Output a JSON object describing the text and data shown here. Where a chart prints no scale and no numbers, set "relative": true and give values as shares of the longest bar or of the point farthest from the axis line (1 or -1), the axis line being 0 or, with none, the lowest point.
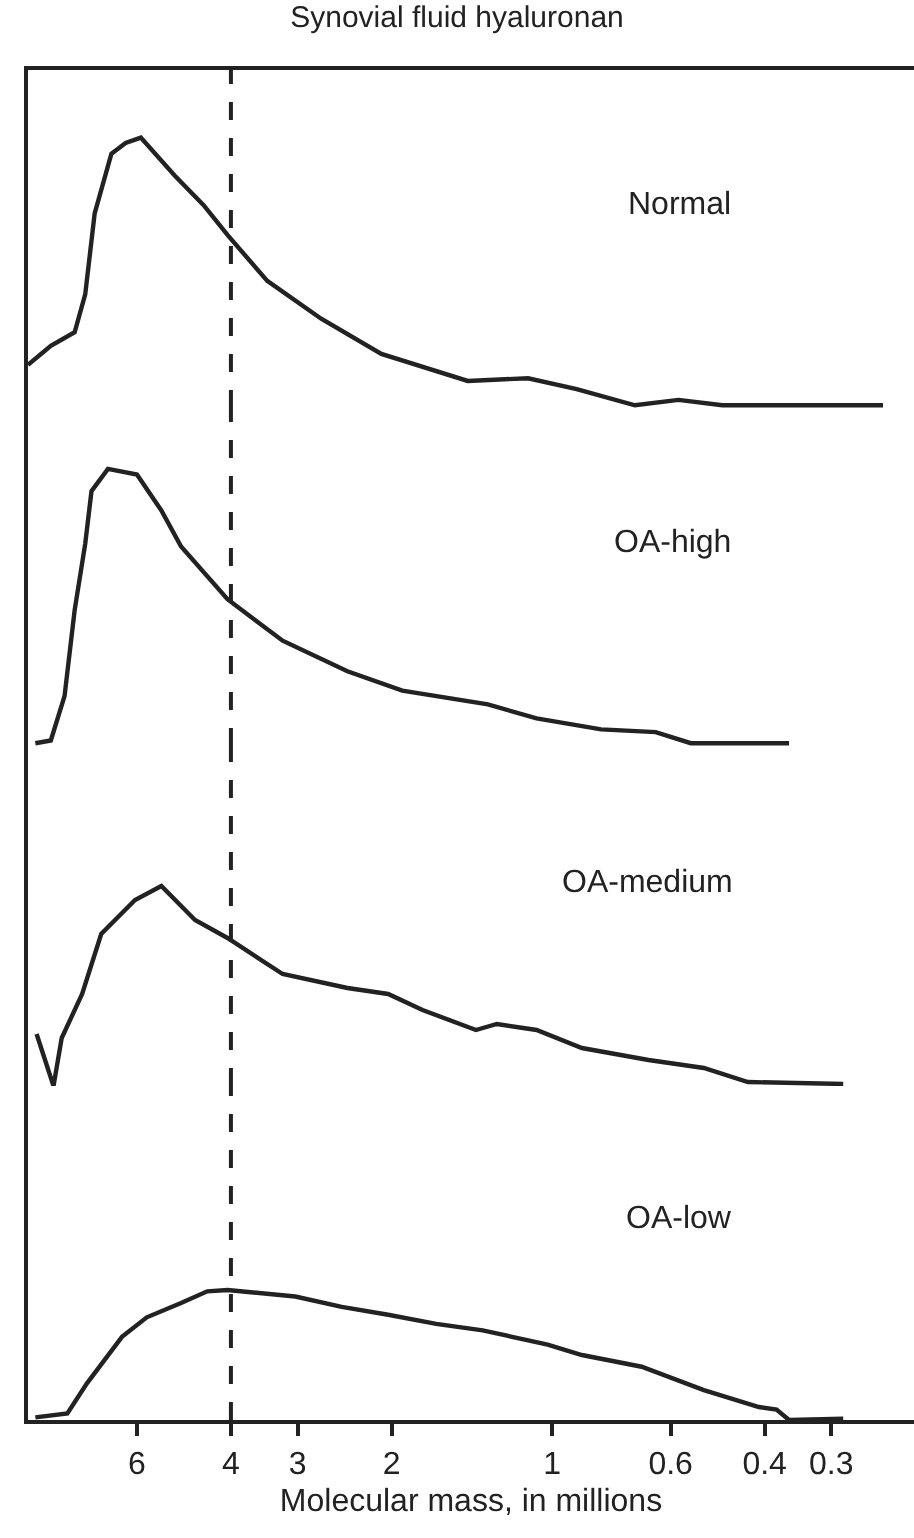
{
  "chart_data": [
    {
      "type": "line",
      "title": "Synovial fluid hyaluronan",
      "relative": true,
      "log": "x",
      "xlim": [
        9.6,
        0.21
      ],
      "tick_labels": false,
      "line_style": "solid",
      "marker": "none",
      "grid": false,
      "legend": false,
      "ref_lines": [
        {
          "axis": "x",
          "value": 4,
          "line_style": "dashed",
          "color": "#222222"
        }
      ],
      "series": [
        {
          "name": "Normal",
          "color": "#222222",
          "x": [
            9.6,
            8.7,
            7.85,
            7.5,
            7.2,
            6.7,
            6.3,
            5.9,
            5.1,
            4.5,
            4.06,
            3.42,
            2.71,
            2.09,
            1.44,
            1.11,
            0.9,
            0.7,
            0.58,
            0.48,
            0.34,
            0.24
          ],
          "values": [
            0.16,
            0.23,
            0.28,
            0.42,
            0.72,
            0.94,
            0.98,
            1,
            0.86,
            0.75,
            0.64,
            0.47,
            0.33,
            0.2,
            0.1,
            0.11,
            0.07,
            0.01,
            0.03,
            0.01,
            0.01,
            0.01
          ]
        }
      ]
    },
    {
      "type": "line",
      "relative": true,
      "log": "x",
      "xlim": [
        9.6,
        0.21
      ],
      "tick_labels": false,
      "line_style": "solid",
      "marker": "none",
      "grid": false,
      "legend": false,
      "ref_lines": [
        {
          "axis": "x",
          "value": 4,
          "line_style": "dashed",
          "color": "#222222"
        }
      ],
      "series": [
        {
          "name": "OA-high",
          "color": "#222222",
          "x": [
            9.3,
            8.7,
            8.2,
            7.85,
            7.5,
            7.3,
            6.8,
            6.0,
            5.4,
            4.96,
            4.06,
            3.2,
            2.42,
            1.91,
            1.32,
            1.07,
            0.81,
            0.64,
            0.55,
            0.36
          ],
          "values": [
            0.01,
            0.02,
            0.18,
            0.49,
            0.73,
            0.92,
            1,
            0.98,
            0.85,
            0.72,
            0.53,
            0.38,
            0.27,
            0.2,
            0.15,
            0.1,
            0.06,
            0.05,
            0.01,
            0.01
          ]
        }
      ]
    },
    {
      "type": "line",
      "relative": true,
      "log": "x",
      "xlim": [
        9.6,
        0.21
      ],
      "tick_labels": false,
      "line_style": "solid",
      "marker": "none",
      "grid": false,
      "legend": false,
      "ref_lines": [
        {
          "axis": "x",
          "value": 4,
          "line_style": "dashed",
          "color": "#222222"
        }
      ],
      "series": [
        {
          "name": "OA-medium",
          "color": "#222222",
          "x": [
            9.25,
            8.6,
            8.3,
            7.6,
            7.0,
            6.05,
            5.4,
            4.67,
            4.06,
            3.2,
            2.42,
            2.03,
            1.75,
            1.39,
            1.27,
            1.07,
            0.88,
            0.66,
            0.52,
            0.43,
            0.285
          ],
          "values": [
            0.26,
            0,
            0.24,
            0.46,
            0.76,
            0.93,
            1,
            0.83,
            0.74,
            0.56,
            0.49,
            0.46,
            0.38,
            0.28,
            0.31,
            0.28,
            0.19,
            0.13,
            0.09,
            0.02,
            0.01
          ]
        }
      ]
    },
    {
      "type": "line",
      "relative": true,
      "log": "x",
      "xlim": [
        9.6,
        0.21
      ],
      "xticks": [
        6,
        4,
        3,
        2,
        1,
        0.6,
        0.4,
        0.3
      ],
      "xlabel": "Molecular mass, in millions",
      "tick_labels": "x",
      "line_style": "solid",
      "marker": "none",
      "grid": false,
      "legend": false,
      "ref_lines": [
        {
          "axis": "x",
          "value": 4,
          "line_style": "dashed",
          "color": "#222222"
        }
      ],
      "series": [
        {
          "name": "OA-low",
          "color": "#222222",
          "x": [
            9.3,
            8.1,
            7.45,
            6.4,
            5.75,
            4.96,
            4.43,
            4.06,
            3.03,
            2.48,
            2.03,
            1.65,
            1.35,
            1.02,
            0.88,
            0.68,
            0.52,
            0.41,
            0.38,
            0.36,
            0.285
          ],
          "values": [
            0.02,
            0.05,
            0.28,
            0.64,
            0.79,
            0.9,
            0.99,
            1,
            0.95,
            0.87,
            0.81,
            0.74,
            0.69,
            0.58,
            0.5,
            0.41,
            0.23,
            0.1,
            0.08,
            0,
            0.01
          ]
        }
      ]
    }
  ]
}
